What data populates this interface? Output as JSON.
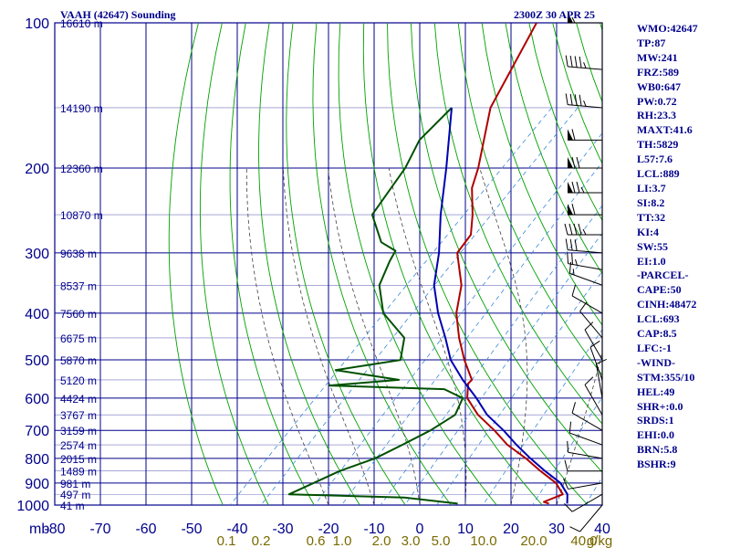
{
  "header": {
    "station": "VAAH (42647) Sounding",
    "valid_time": "2300Z 30 APR 25"
  },
  "colors": {
    "frame": "#00008b",
    "temperature": "#b00000",
    "dewpoint": "#005000",
    "parcel": "#0000b0",
    "dry_adiabat": "#00a000",
    "moist_adiabat": "#404040",
    "mixing_ratio": "#3a8ad8",
    "mixing_ratio_labels": "#7a6a00",
    "wind_barb": "#000000"
  },
  "indices": [
    "WMO:42647",
    "TP:87",
    "MW:241",
    "FRZ:589",
    "WB0:647",
    "PW:0.72",
    "RH:23.3",
    "MAXT:41.6",
    "TH:5829",
    "L57:7.6",
    "LCL:889",
    "LI:3.7",
    "SI:8.2",
    "TT:32",
    "KI:4",
    "SW:55",
    "EI:1.0",
    "-PARCEL-",
    "CAPE:50",
    "CINH:48472",
    "LCL:693",
    "CAP:8.5",
    "LFC:-1",
    "-WIND-",
    "STM:355/10",
    "HEL:49",
    "SHR+:0.0",
    "SRDS:1",
    "EHI:0.0",
    "BRN:5.8",
    "BSHR:9"
  ],
  "chart_data": {
    "type": "line",
    "subtype": "skew-T log-P sounding",
    "title": "VAAH (42647) Sounding",
    "subtitle": "2300Z 30 APR 25",
    "x_unit_label": "mb",
    "y_axis": {
      "scale": "log",
      "reversed": true,
      "ylim": [
        100,
        1000
      ],
      "ticks": [
        100,
        200,
        300,
        400,
        500,
        600,
        700,
        800,
        900,
        1000
      ]
    },
    "x_axis": {
      "xlim": [
        -80,
        40
      ],
      "ticks": [
        -80,
        -70,
        -60,
        -50,
        -40,
        -30,
        -20,
        -10,
        0,
        10,
        20,
        30,
        40
      ],
      "tick_labels": [
        "-80",
        "-70",
        "-60",
        "-50",
        "-40",
        "-30",
        "-20",
        "-10",
        "0",
        "10",
        "20",
        "30",
        "40"
      ]
    },
    "height_labels": [
      {
        "p": 100,
        "label": "16610 m"
      },
      {
        "p": 150,
        "label": "14190 m"
      },
      {
        "p": 200,
        "label": "12360 m"
      },
      {
        "p": 250,
        "label": "10870 m"
      },
      {
        "p": 300,
        "label": "9638 m"
      },
      {
        "p": 350,
        "label": "8537 m"
      },
      {
        "p": 400,
        "label": "7560 m"
      },
      {
        "p": 450,
        "label": "6675 m"
      },
      {
        "p": 500,
        "label": "5870 m"
      },
      {
        "p": 550,
        "label": "5120 m"
      },
      {
        "p": 600,
        "label": "4424 m"
      },
      {
        "p": 650,
        "label": "3767 m"
      },
      {
        "p": 700,
        "label": "3159 m"
      },
      {
        "p": 750,
        "label": "2574 m"
      },
      {
        "p": 800,
        "label": "2015 m"
      },
      {
        "p": 850,
        "label": "1489 m"
      },
      {
        "p": 900,
        "label": "981 m"
      },
      {
        "p": 950,
        "label": "497 m"
      },
      {
        "p": 1000,
        "label": "41 m"
      }
    ],
    "mixing_ratio_labels": [
      "0.1",
      "0.2",
      "0.6",
      "1.0",
      "2.0",
      "3.0",
      "5.0",
      "10.0",
      "20.0",
      "40.0",
      "g/kg"
    ],
    "series": [
      {
        "key": "temperature",
        "points": [
          [
            -80,
            100
          ],
          [
            -71.5,
            150
          ],
          [
            -61,
            200
          ],
          [
            -58,
            220
          ],
          [
            -52,
            250
          ],
          [
            -48,
            275
          ],
          [
            -47,
            300
          ],
          [
            -39,
            350
          ],
          [
            -34,
            400
          ],
          [
            -28,
            450
          ],
          [
            -22,
            500
          ],
          [
            -16,
            550
          ],
          [
            -16,
            560
          ],
          [
            -13,
            600
          ],
          [
            -7,
            650
          ],
          [
            0,
            700
          ],
          [
            6,
            750
          ],
          [
            13,
            800
          ],
          [
            19,
            850
          ],
          [
            25,
            900
          ],
          [
            29,
            950
          ],
          [
            26.5,
            985
          ],
          [
            28,
            993
          ]
        ]
      },
      {
        "key": "dewpoint",
        "points": [
          [
            -80,
            150
          ],
          [
            -80,
            175
          ],
          [
            -77,
            200
          ],
          [
            -74,
            250
          ],
          [
            -66,
            285
          ],
          [
            -61,
            297
          ],
          [
            -60,
            312
          ],
          [
            -57,
            350
          ],
          [
            -50,
            400
          ],
          [
            -40,
            450
          ],
          [
            -36,
            500
          ],
          [
            -48,
            525
          ],
          [
            -32,
            550
          ],
          [
            -46,
            565
          ],
          [
            -20,
            575
          ],
          [
            -14,
            600
          ],
          [
            -12,
            650
          ],
          [
            -14,
            700
          ],
          [
            -17,
            750
          ],
          [
            -20,
            800
          ],
          [
            -25,
            850
          ],
          [
            -31,
            950
          ],
          [
            -5,
            965
          ],
          [
            8,
            993
          ]
        ]
      },
      {
        "key": "parcel",
        "points": [
          [
            -80,
            150
          ],
          [
            -68,
            200
          ],
          [
            -59,
            250
          ],
          [
            -51,
            300
          ],
          [
            -45,
            350
          ],
          [
            -38,
            400
          ],
          [
            -31,
            450
          ],
          [
            -25,
            500
          ],
          [
            -18,
            550
          ],
          [
            -11,
            600
          ],
          [
            -5,
            650
          ],
          [
            2,
            700
          ],
          [
            8,
            750
          ],
          [
            14,
            800
          ],
          [
            20,
            850
          ],
          [
            26,
            900
          ],
          [
            30,
            950
          ],
          [
            32,
            993
          ]
        ]
      }
    ],
    "wind_barbs": [
      {
        "p": 100,
        "dir": 270,
        "spd": 55
      },
      {
        "p": 125,
        "dir": 275,
        "spd": 45
      },
      {
        "p": 150,
        "dir": 275,
        "spd": 45
      },
      {
        "p": 175,
        "dir": 270,
        "spd": 60
      },
      {
        "p": 200,
        "dir": 270,
        "spd": 70
      },
      {
        "p": 225,
        "dir": 270,
        "spd": 75
      },
      {
        "p": 250,
        "dir": 270,
        "spd": 60
      },
      {
        "p": 275,
        "dir": 270,
        "spd": 45
      },
      {
        "p": 300,
        "dir": 275,
        "spd": 30
      },
      {
        "p": 325,
        "dir": 280,
        "spd": 25
      },
      {
        "p": 350,
        "dir": 290,
        "spd": 15
      },
      {
        "p": 400,
        "dir": 300,
        "spd": 10
      },
      {
        "p": 450,
        "dir": 320,
        "spd": 10
      },
      {
        "p": 500,
        "dir": 330,
        "spd": 10
      },
      {
        "p": 550,
        "dir": 340,
        "spd": 10
      },
      {
        "p": 600,
        "dir": 350,
        "spd": 10
      },
      {
        "p": 650,
        "dir": 330,
        "spd": 10
      },
      {
        "p": 700,
        "dir": 300,
        "spd": 10
      },
      {
        "p": 750,
        "dir": 290,
        "spd": 10
      },
      {
        "p": 800,
        "dir": 280,
        "spd": 10
      },
      {
        "p": 850,
        "dir": 270,
        "spd": 10
      },
      {
        "p": 900,
        "dir": 260,
        "spd": 10
      },
      {
        "p": 950,
        "dir": 240,
        "spd": 10
      },
      {
        "p": 1000,
        "dir": 220,
        "spd": 10
      }
    ]
  }
}
